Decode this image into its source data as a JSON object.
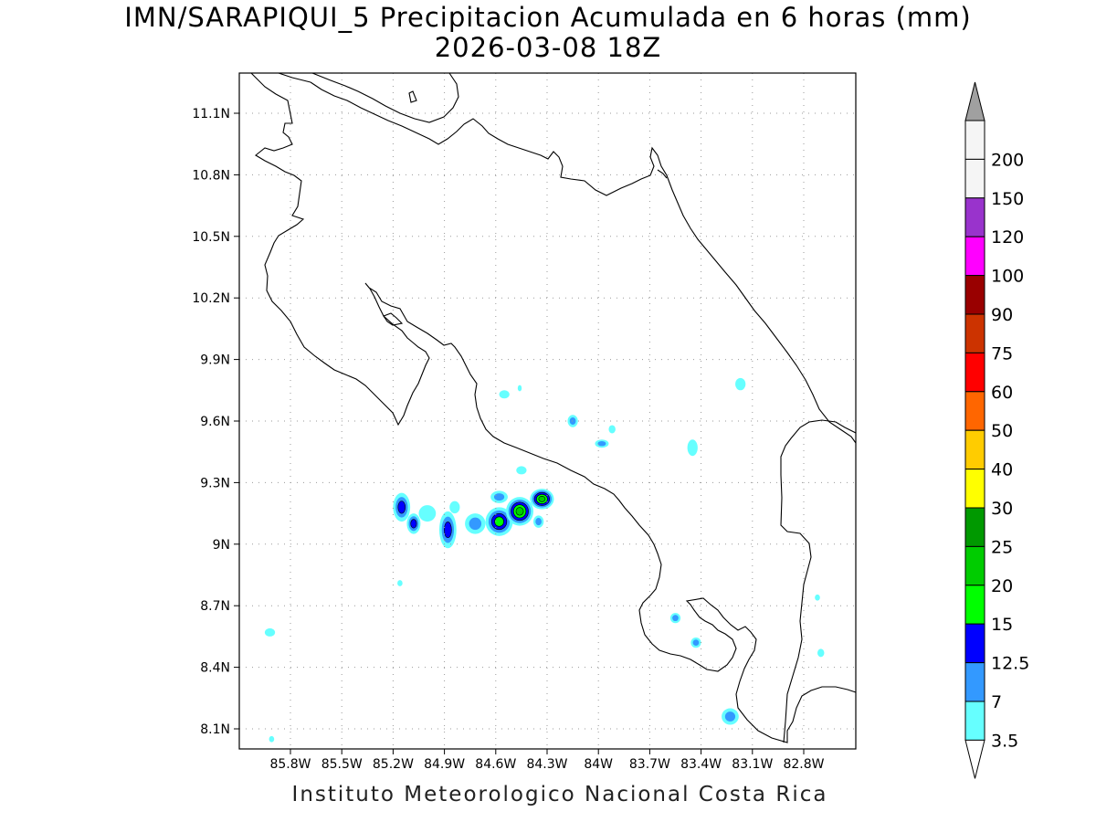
{
  "map": {
    "title_line1": "IMN/SARAPIQUI_5 Precipitacion Acumulada en 6 horas (mm)",
    "title_line2": "2026-03-08 18Z",
    "credit": "Instituto Meteorologico Nacional Costa Rica",
    "region": "Costa Rica",
    "variable": "6-hour accumulated precipitation",
    "units": "mm",
    "lon_range": [
      -86.0,
      -82.5
    ],
    "lat_range": [
      8.0,
      11.3
    ],
    "lon_ticks": [
      {
        "value": -85.8,
        "label": "85.8W"
      },
      {
        "value": -85.5,
        "label": "85.5W"
      },
      {
        "value": -85.2,
        "label": "85.2W"
      },
      {
        "value": -84.9,
        "label": "84.9W"
      },
      {
        "value": -84.6,
        "label": "84.6W"
      },
      {
        "value": -84.3,
        "label": "84.3W"
      },
      {
        "value": -84.0,
        "label": "84W"
      },
      {
        "value": -83.7,
        "label": "83.7W"
      },
      {
        "value": -83.4,
        "label": "83.4W"
      },
      {
        "value": -83.1,
        "label": "83.1W"
      },
      {
        "value": -82.8,
        "label": "82.8W"
      }
    ],
    "lat_ticks": [
      {
        "value": 11.1,
        "label": "11.1N"
      },
      {
        "value": 10.8,
        "label": "10.8N"
      },
      {
        "value": 10.5,
        "label": "10.5N"
      },
      {
        "value": 10.2,
        "label": "10.2N"
      },
      {
        "value": 9.9,
        "label": "9.9N"
      },
      {
        "value": 9.6,
        "label": "9.6N"
      },
      {
        "value": 9.3,
        "label": "9.3N"
      },
      {
        "value": 9.0,
        "label": "9N"
      },
      {
        "value": 8.7,
        "label": "8.7N"
      },
      {
        "value": 8.4,
        "label": "8.4N"
      },
      {
        "value": 8.1,
        "label": "8.1N"
      }
    ],
    "grid": true
  },
  "colorbar": {
    "labels": [
      "3.5",
      "7",
      "12.5",
      "15",
      "20",
      "25",
      "30",
      "40",
      "50",
      "60",
      "75",
      "90",
      "100",
      "120",
      "150",
      "200"
    ],
    "colors": [
      "#66ffff",
      "#3399ff",
      "#0000ff",
      "#00ff00",
      "#00cc00",
      "#009900",
      "#ffff00",
      "#ffcc00",
      "#ff6600",
      "#ff0000",
      "#cc3300",
      "#990000",
      "#ff00ff",
      "#9933cc",
      "#f5f5f5",
      "#a0a0a0"
    ],
    "under_color": "#ffffff",
    "over_color": "#a0a0a0"
  },
  "rain_cells": [
    {
      "lon": -85.15,
      "lat": 9.18,
      "rx": 0.05,
      "ry": 0.07,
      "level": 3
    },
    {
      "lon": -85.08,
      "lat": 9.1,
      "rx": 0.04,
      "ry": 0.05,
      "level": 3
    },
    {
      "lon": -85.0,
      "lat": 9.15,
      "rx": 0.05,
      "ry": 0.04,
      "level": 1
    },
    {
      "lon": -84.88,
      "lat": 9.07,
      "rx": 0.05,
      "ry": 0.09,
      "level": 3
    },
    {
      "lon": -84.84,
      "lat": 9.18,
      "rx": 0.03,
      "ry": 0.03,
      "level": 1
    },
    {
      "lon": -84.72,
      "lat": 9.1,
      "rx": 0.06,
      "ry": 0.05,
      "level": 2
    },
    {
      "lon": -84.58,
      "lat": 9.11,
      "rx": 0.08,
      "ry": 0.07,
      "level": 4
    },
    {
      "lon": -84.46,
      "lat": 9.16,
      "rx": 0.08,
      "ry": 0.07,
      "level": 5
    },
    {
      "lon": -84.33,
      "lat": 9.22,
      "rx": 0.07,
      "ry": 0.05,
      "level": 5
    },
    {
      "lon": -84.58,
      "lat": 9.23,
      "rx": 0.05,
      "ry": 0.03,
      "level": 2
    },
    {
      "lon": -84.45,
      "lat": 9.36,
      "rx": 0.03,
      "ry": 0.02,
      "level": 1
    },
    {
      "lon": -84.35,
      "lat": 9.11,
      "rx": 0.03,
      "ry": 0.03,
      "level": 2
    },
    {
      "lon": -84.15,
      "lat": 9.6,
      "rx": 0.03,
      "ry": 0.03,
      "level": 2
    },
    {
      "lon": -83.98,
      "lat": 9.49,
      "rx": 0.04,
      "ry": 0.02,
      "level": 2
    },
    {
      "lon": -83.92,
      "lat": 9.56,
      "rx": 0.02,
      "ry": 0.02,
      "level": 1
    },
    {
      "lon": -84.55,
      "lat": 9.73,
      "rx": 0.03,
      "ry": 0.02,
      "level": 1
    },
    {
      "lon": -84.46,
      "lat": 9.76,
      "rx": 0.01,
      "ry": 0.015,
      "level": 1
    },
    {
      "lon": -83.45,
      "lat": 9.47,
      "rx": 0.03,
      "ry": 0.04,
      "level": 1
    },
    {
      "lon": -83.17,
      "lat": 9.78,
      "rx": 0.03,
      "ry": 0.03,
      "level": 1
    },
    {
      "lon": -83.55,
      "lat": 8.64,
      "rx": 0.03,
      "ry": 0.025,
      "level": 2
    },
    {
      "lon": -83.43,
      "lat": 8.52,
      "rx": 0.03,
      "ry": 0.025,
      "level": 2
    },
    {
      "lon": -83.23,
      "lat": 8.16,
      "rx": 0.05,
      "ry": 0.04,
      "level": 2
    },
    {
      "lon": -85.92,
      "lat": 8.57,
      "rx": 0.03,
      "ry": 0.02,
      "level": 1
    },
    {
      "lon": -85.91,
      "lat": 8.05,
      "rx": 0.015,
      "ry": 0.015,
      "level": 1
    },
    {
      "lon": -85.16,
      "lat": 8.81,
      "rx": 0.015,
      "ry": 0.015,
      "level": 1
    },
    {
      "lon": -82.72,
      "lat": 8.74,
      "rx": 0.015,
      "ry": 0.015,
      "level": 1
    },
    {
      "lon": -82.7,
      "lat": 8.47,
      "rx": 0.02,
      "ry": 0.02,
      "level": 1
    }
  ]
}
